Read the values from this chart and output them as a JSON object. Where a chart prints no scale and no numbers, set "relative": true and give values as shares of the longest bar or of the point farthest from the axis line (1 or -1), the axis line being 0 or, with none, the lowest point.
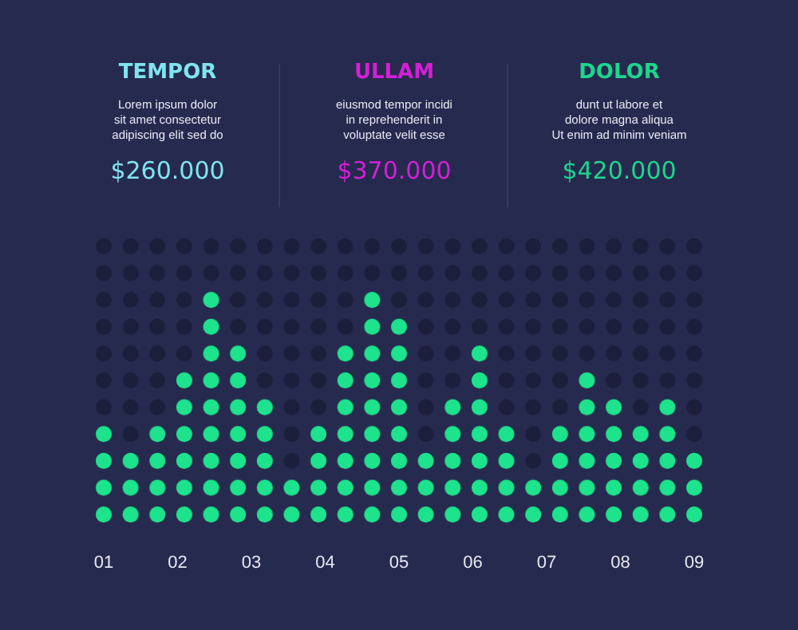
{
  "chart_data": {
    "type": "bar",
    "relative": true,
    "color": "#1de38c",
    "annotations": [
      "TEMPOR",
      "Lorem ipsum dolor\nsit amet consectetur\nadipiscing elit sed do",
      "$260.000",
      "ULLAM",
      "eiusmod tempor incidi\nin reprehenderit in\nvoluptate velit esse",
      "$370.000",
      "DOLOR",
      "dunt ut labore et\ndolore magna aliqua\nUt enim ad minim veniam",
      "$420.000"
    ],
    "x": [
      1,
      1.364,
      1.727,
      2.091,
      2.455,
      2.818,
      3.182,
      3.545,
      3.909,
      4.273,
      4.636,
      5,
      5.364,
      5.727,
      6.091,
      6.455,
      6.818,
      7.182,
      7.545,
      7.909,
      8.273,
      8.636,
      9
    ],
    "values": [
      0.444,
      0.333,
      0.444,
      0.667,
      1,
      0.778,
      0.556,
      0.222,
      0.444,
      0.778,
      1,
      0.889,
      0.333,
      0.556,
      0.778,
      0.444,
      0.222,
      0.444,
      0.667,
      0.556,
      0.444,
      0.556,
      0.333
    ],
    "xlim": [
      0.818,
      9.182
    ],
    "xticks": [
      {
        "value": 1,
        "label": "01"
      },
      {
        "value": 2,
        "label": "02"
      },
      {
        "value": 3,
        "label": "03"
      },
      {
        "value": 4,
        "label": "04"
      },
      {
        "value": 5,
        "label": "05"
      },
      {
        "value": 6,
        "label": "06"
      },
      {
        "value": 7,
        "label": "07"
      },
      {
        "value": 8,
        "label": "08"
      },
      {
        "value": 9,
        "label": "09"
      }
    ]
  }
}
